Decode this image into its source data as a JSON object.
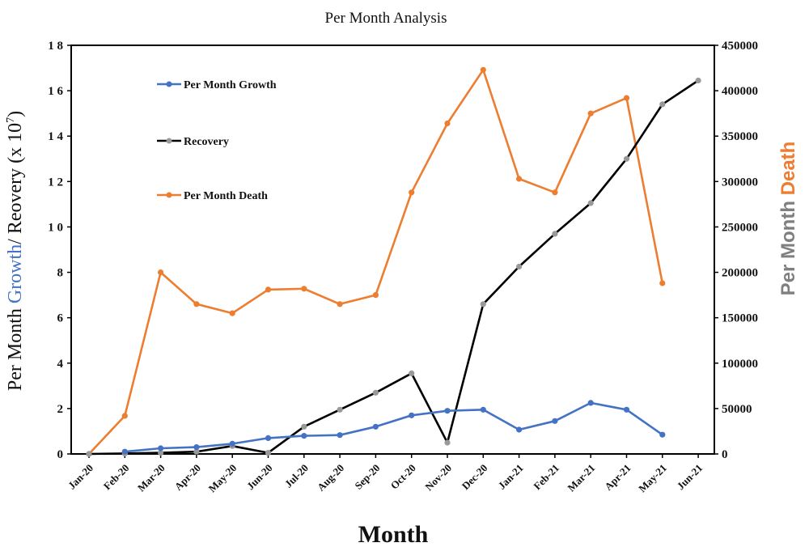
{
  "chart_data": {
    "type": "line",
    "title": "Per Month Analysis",
    "xlabel": "Month",
    "ylabel_left": {
      "part1": "Per Month ",
      "part2": "Growth",
      "part3": "/ Reovery  (x 10",
      "sup": "7",
      "part4": ")"
    },
    "ylabel_right": {
      "part1": "Per Month ",
      "part2": "Death"
    },
    "categories": [
      "Jan-20",
      "Feb-20",
      "Mar-20",
      "Apr-20",
      "May-20",
      "Jun-20",
      "Jul-20",
      "Aug-20",
      "Sep-20",
      "Oct-20",
      "Nov-20",
      "Dec-20",
      "Jan-21",
      "Feb-21",
      "Mar-21",
      "Apr-21",
      "May-21",
      "Jun-21"
    ],
    "ylim_left": [
      0,
      18
    ],
    "ylim_right": [
      0,
      450000
    ],
    "yticks_left": [
      "0",
      "2",
      "4",
      "6",
      "8",
      "1 0",
      "1 2",
      "1 4",
      "1 6",
      "1 8"
    ],
    "yticks_right": [
      "0",
      "50000",
      "100000",
      "150000",
      "200000",
      "250000",
      "300000",
      "350000",
      "400000",
      "450000"
    ],
    "grid": false,
    "legend_position": "top-left",
    "series": [
      {
        "name": "Per Month Growth",
        "axis": "left",
        "color": "#4472C4",
        "x": [
          "Feb-20",
          "Mar-20",
          "Apr-20",
          "May-20",
          "Jun-20",
          "Jul-20",
          "Aug-20",
          "Sep-20",
          "Oct-20",
          "Nov-20",
          "Dec-20",
          "Jan-21",
          "Feb-21",
          "Mar-21",
          "Apr-21",
          "May-21"
        ],
        "values": [
          0.1,
          0.25,
          0.3,
          0.45,
          0.7,
          0.8,
          0.83,
          1.2,
          1.7,
          1.9,
          1.95,
          1.07,
          1.45,
          2.25,
          1.95,
          0.85
        ]
      },
      {
        "name": "Recovery",
        "axis": "left",
        "color": "#000000",
        "marker_color": "#999999",
        "x": [
          "Jan-20",
          "Feb-20",
          "Mar-20",
          "Apr-20",
          "May-20",
          "Jun-20",
          "Jul-20",
          "Aug-20",
          "Sep-20",
          "Oct-20",
          "Nov-20",
          "Dec-20",
          "Jan-21",
          "Feb-21",
          "Mar-21",
          "Apr-21",
          "May-21",
          "Jun-21"
        ],
        "values": [
          0,
          0.02,
          0.05,
          0.1,
          0.35,
          0.05,
          1.2,
          1.95,
          2.7,
          3.55,
          0.5,
          6.6,
          8.25,
          9.7,
          11.05,
          13.0,
          15.4,
          16.45
        ]
      },
      {
        "name": "Per Month Death",
        "axis": "right",
        "color": "#ED7D31",
        "x": [
          "Jan-20",
          "Feb-20",
          "Mar-20",
          "Apr-20",
          "May-20",
          "Jun-20",
          "Jul-20",
          "Aug-20",
          "Sep-20",
          "Oct-20",
          "Nov-20",
          "Dec-20",
          "Jan-21",
          "Feb-21",
          "Mar-21",
          "Apr-21",
          "May-21"
        ],
        "values": [
          0,
          42000,
          200000,
          165000,
          155000,
          181000,
          182000,
          165000,
          175000,
          288000,
          364000,
          423000,
          303000,
          288000,
          375000,
          392000,
          188000
        ]
      }
    ]
  }
}
